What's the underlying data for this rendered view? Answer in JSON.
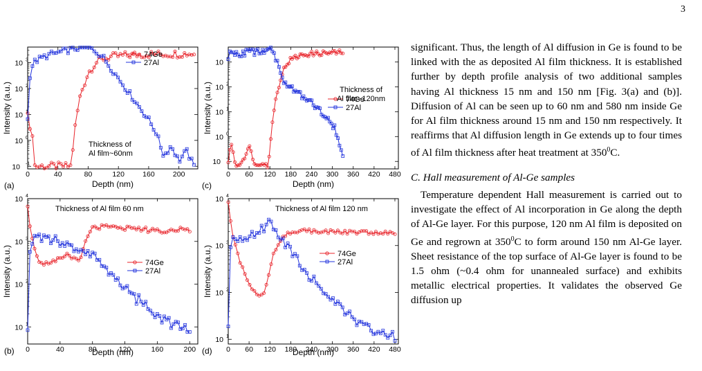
{
  "page_number": "3",
  "colors": {
    "ge": "#e8232a",
    "al": "#2233dd",
    "axis": "#000000"
  },
  "figure": {
    "panels": [
      {
        "letter": "(a)",
        "annotation": [
          "Thickness of",
          "Al film~60nm"
        ],
        "ylabel": "Intensity (a.u.)",
        "xlabel": "Depth (nm)",
        "xticks": [
          "0",
          "40",
          "80",
          "120",
          "160",
          "200"
        ],
        "yticks": [
          "10",
          "10",
          "10",
          "10",
          "10"
        ],
        "ytick_exps": [
          "3",
          "2",
          "1",
          "0",
          "-1"
        ],
        "legend": [
          "74Ge",
          "27Al"
        ]
      },
      {
        "letter": "(c)",
        "annotation": [
          "Thickness of",
          "Al film~120nm"
        ],
        "ylabel": "Intensity (a.u.)",
        "xlabel": "Depth (nm)",
        "xticks": [
          "0",
          "60",
          "120",
          "180",
          "240",
          "300",
          "360",
          "420",
          "480"
        ],
        "yticks": [
          "10",
          "10",
          "10",
          "10",
          "10"
        ],
        "ytick_exps": [
          "3",
          "2",
          "1",
          "0",
          "-1"
        ],
        "legend": [
          "74Ge",
          "27Al"
        ]
      },
      {
        "letter": "(b)",
        "annotation": [
          "Thickness of Al film 60 nm"
        ],
        "ylabel": "Intensity (a.u.)",
        "xlabel": "Depth (nm)",
        "xticks": [
          "0",
          "40",
          "80",
          "120",
          "160",
          "200"
        ],
        "yticks": [
          "10",
          "10",
          "10",
          "10"
        ],
        "ytick_exps": [
          "4",
          "3",
          "2",
          "1"
        ],
        "legend": [
          "74Ge",
          "27Al"
        ]
      },
      {
        "letter": "(d)",
        "annotation": [
          "Thickness of Al film 120 nm"
        ],
        "ylabel": "Intensity (a.u.)",
        "xlabel": "Depth (nm)",
        "xticks": [
          "0",
          "60",
          "120",
          "180",
          "240",
          "300",
          "360",
          "420",
          "480"
        ],
        "yticks": [
          "10",
          "10",
          "10",
          "10"
        ],
        "ytick_exps": [
          "4",
          "3",
          "2",
          "1"
        ],
        "legend": [
          "74Ge",
          "27Al"
        ]
      }
    ]
  },
  "chart_data": [
    {
      "type": "scatter",
      "panel": "(a)",
      "xlabel": "Depth (nm)",
      "ylabel": "Intensity (a.u.)",
      "xlim": [
        0,
        225
      ],
      "ylim_log10": [
        -1.1,
        3.6
      ],
      "yscale": "log",
      "series": [
        {
          "name": "74Ge",
          "x": [
            0,
            2,
            4,
            6,
            8,
            10,
            20,
            30,
            40,
            50,
            58,
            60,
            64,
            70,
            80,
            90,
            100,
            110,
            120,
            130,
            140,
            160,
            180,
            200,
            220
          ],
          "log10_y": [
            1.2,
            1.0,
            -0.2,
            0.5,
            -0.9,
            -1.0,
            -1.0,
            -1.0,
            -1.0,
            -1.0,
            -1.0,
            -0.2,
            0.8,
            1.8,
            2.6,
            3.0,
            3.15,
            3.22,
            3.25,
            3.28,
            3.3,
            3.32,
            3.33,
            3.34,
            3.35
          ]
        },
        {
          "name": "27Al",
          "x": [
            0,
            2,
            5,
            10,
            20,
            30,
            40,
            50,
            60,
            70,
            80,
            90,
            100,
            110,
            120,
            130,
            140,
            150,
            160,
            170,
            180,
            190,
            200,
            210,
            220
          ],
          "log10_y": [
            0.8,
            2.3,
            2.85,
            3.05,
            3.2,
            3.32,
            3.38,
            3.45,
            3.52,
            3.6,
            3.62,
            3.45,
            3.2,
            2.8,
            2.4,
            2.0,
            1.6,
            1.2,
            0.8,
            0.3,
            -0.6,
            -0.2,
            -0.8,
            -0.4,
            -1.0
          ]
        }
      ]
    },
    {
      "type": "scatter",
      "panel": "(c)",
      "xlabel": "Depth (nm)",
      "ylabel": "Intensity (a.u.)",
      "xlim": [
        0,
        490
      ],
      "ylim_log10": [
        -1.3,
        3.6
      ],
      "yscale": "log",
      "series": [
        {
          "name": "74Ge",
          "x": [
            0,
            10,
            20,
            40,
            60,
            80,
            100,
            115,
            120,
            125,
            130,
            140,
            150,
            160,
            170,
            180,
            200,
            220,
            250,
            280,
            300,
            320,
            330
          ],
          "log10_y": [
            -1.0,
            -0.2,
            -1.2,
            -1.0,
            -0.4,
            -1.2,
            -1.0,
            -1.2,
            -0.6,
            0.3,
            1.0,
            1.7,
            2.3,
            2.7,
            2.95,
            3.1,
            3.22,
            3.3,
            3.34,
            3.36,
            3.37,
            3.38,
            3.38
          ]
        },
        {
          "name": "27Al",
          "x": [
            0,
            5,
            10,
            20,
            40,
            60,
            80,
            100,
            120,
            130,
            140,
            150,
            160,
            180,
            200,
            220,
            240,
            260,
            280,
            300,
            310,
            320,
            330
          ],
          "log10_y": [
            3.2,
            3.3,
            3.35,
            3.36,
            3.38,
            3.4,
            3.42,
            3.45,
            3.6,
            3.4,
            3.0,
            2.6,
            2.3,
            2.0,
            1.8,
            1.6,
            1.4,
            1.1,
            0.8,
            0.5,
            0.2,
            -0.4,
            -0.8
          ]
        }
      ]
    },
    {
      "type": "scatter",
      "panel": "(b)",
      "xlabel": "Depth (nm)",
      "ylabel": "Intensity (a.u.)",
      "xlim": [
        0,
        210
      ],
      "ylim_log10": [
        0.6,
        4.0
      ],
      "yscale": "log",
      "series": [
        {
          "name": "74Ge",
          "x": [
            0,
            3,
            6,
            10,
            15,
            20,
            25,
            30,
            35,
            40,
            45,
            50,
            55,
            60,
            65,
            70,
            75,
            80,
            90,
            100,
            110,
            120,
            140,
            160,
            180,
            200
          ],
          "log10_y": [
            3.8,
            3.35,
            3.0,
            2.7,
            2.55,
            2.5,
            2.48,
            2.52,
            2.55,
            2.6,
            2.7,
            2.65,
            2.58,
            2.55,
            2.65,
            2.9,
            3.2,
            3.3,
            3.34,
            3.36,
            3.34,
            3.32,
            3.28,
            3.26,
            3.26,
            3.27
          ]
        },
        {
          "name": "27Al",
          "x": [
            0,
            3,
            6,
            10,
            15,
            20,
            25,
            30,
            35,
            40,
            50,
            60,
            70,
            80,
            90,
            100,
            110,
            120,
            130,
            140,
            150,
            160,
            170,
            180,
            190,
            200
          ],
          "log10_y": [
            0.9,
            2.9,
            3.0,
            3.05,
            3.1,
            3.12,
            3.1,
            3.05,
            3.0,
            2.95,
            2.85,
            2.8,
            2.78,
            2.7,
            2.55,
            2.3,
            2.1,
            1.9,
            1.7,
            1.6,
            1.4,
            1.25,
            1.15,
            1.05,
            0.95,
            0.95
          ]
        }
      ]
    },
    {
      "type": "scatter",
      "panel": "(d)",
      "xlabel": "Depth (nm)",
      "ylabel": "Intensity (a.u.)",
      "xlim": [
        0,
        490
      ],
      "ylim_log10": [
        0.9,
        4.0
      ],
      "yscale": "log",
      "series": [
        {
          "name": "74Ge",
          "x": [
            0,
            5,
            10,
            20,
            30,
            40,
            50,
            60,
            70,
            80,
            90,
            100,
            110,
            120,
            130,
            140,
            150,
            160,
            170,
            180,
            200,
            220,
            260,
            300,
            360,
            420,
            480
          ],
          "log10_y": [
            3.9,
            3.6,
            3.3,
            3.0,
            2.75,
            2.55,
            2.35,
            2.2,
            2.05,
            1.95,
            1.9,
            1.95,
            2.15,
            2.5,
            2.8,
            3.0,
            3.12,
            3.2,
            3.25,
            3.28,
            3.3,
            3.31,
            3.3,
            3.29,
            3.28,
            3.27,
            3.27
          ]
        },
        {
          "name": "27Al",
          "x": [
            0,
            5,
            10,
            20,
            40,
            60,
            80,
            100,
            110,
            120,
            130,
            140,
            160,
            180,
            200,
            220,
            240,
            260,
            280,
            300,
            320,
            340,
            360,
            380,
            400,
            420,
            440,
            460,
            480
          ],
          "log10_y": [
            1.2,
            3.0,
            3.1,
            3.12,
            3.15,
            3.2,
            3.25,
            3.35,
            3.42,
            3.48,
            3.42,
            3.3,
            3.1,
            2.9,
            2.7,
            2.5,
            2.3,
            2.15,
            2.0,
            1.85,
            1.7,
            1.6,
            1.45,
            1.35,
            1.25,
            1.2,
            1.15,
            1.1,
            1.05
          ]
        }
      ]
    }
  ],
  "text": {
    "para1": "significant. Thus, the length of Al diffusion in Ge is found to be linked with the as deposited Al film thickness. It is established further by depth profile analysis of two additional samples having Al thickness 15 nm and 150 nm [Fig. 3(a) and (b)]. Diffusion of Al can be seen up to 60 nm and 580 nm inside Ge for Al film thickness around 15 nm and 150 nm respectively. It reaffirms that Al diffusion length in Ge extends up to four times of Al film thickness after heat treatment at 350",
    "para1_sup": "0",
    "para1_end": "C.",
    "section": "C.  Hall measurement of Al-Ge samples",
    "para2a": "Temperature dependent Hall measurement is carried out to investigate the effect of Al incorporation in Ge along the depth of Al-Ge layer. For this purpose, 120 nm Al film is deposited on Ge and regrown at 350",
    "para2_sup": "0",
    "para2b": "C to form around 150 nm Al-Ge layer. Sheet resistance of the top surface of Al-Ge layer is found to be 1.5 ohm (~0.4 ohm for unannealed surface) and exhibits metallic electrical properties. It validates the observed Ge diffusion up"
  }
}
